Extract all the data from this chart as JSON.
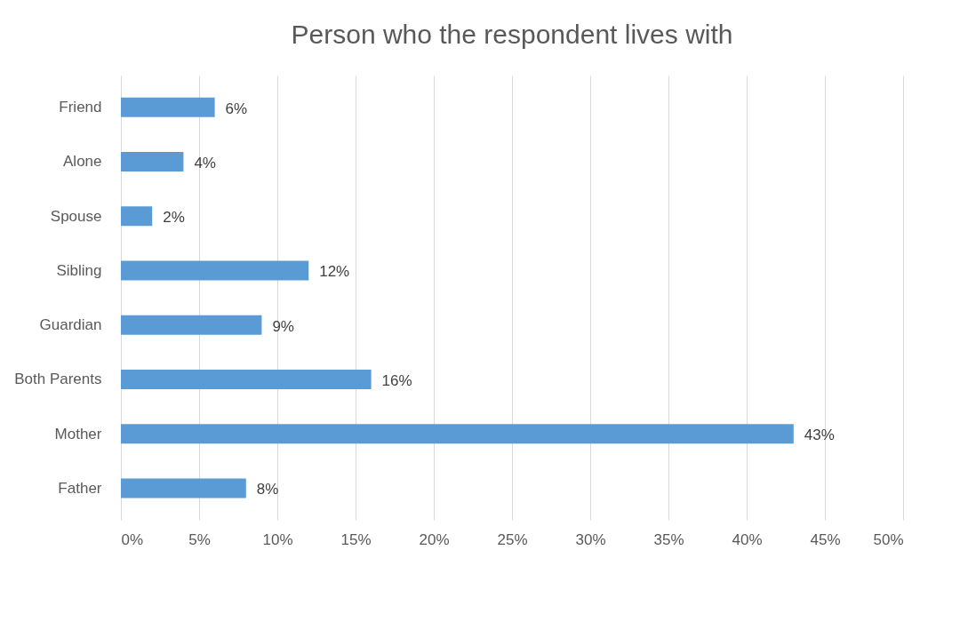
{
  "chart_data": {
    "type": "bar",
    "orientation": "horizontal",
    "title": "Person who the respondent lives with",
    "categories": [
      "Friend",
      "Alone",
      "Spouse",
      "Sibling",
      "Guardian",
      "Both Parents",
      "Mother",
      "Father"
    ],
    "values": [
      6,
      4,
      2,
      12,
      9,
      16,
      43,
      8
    ],
    "value_labels": [
      "6%",
      "4%",
      "2%",
      "12%",
      "9%",
      "16%",
      "43%",
      "8%"
    ],
    "color": "#5b9bd5",
    "xlim": [
      0,
      50
    ],
    "xticks": [
      {
        "value": 0,
        "label": "0%"
      },
      {
        "value": 5,
        "label": "5%"
      },
      {
        "value": 10,
        "label": "10%"
      },
      {
        "value": 15,
        "label": "15%"
      },
      {
        "value": 20,
        "label": "20%"
      },
      {
        "value": 25,
        "label": "25%"
      },
      {
        "value": 30,
        "label": "30%"
      },
      {
        "value": 35,
        "label": "35%"
      },
      {
        "value": 40,
        "label": "40%"
      },
      {
        "value": 45,
        "label": "45%"
      },
      {
        "value": 50,
        "label": "50%"
      }
    ],
    "grid": "x"
  }
}
